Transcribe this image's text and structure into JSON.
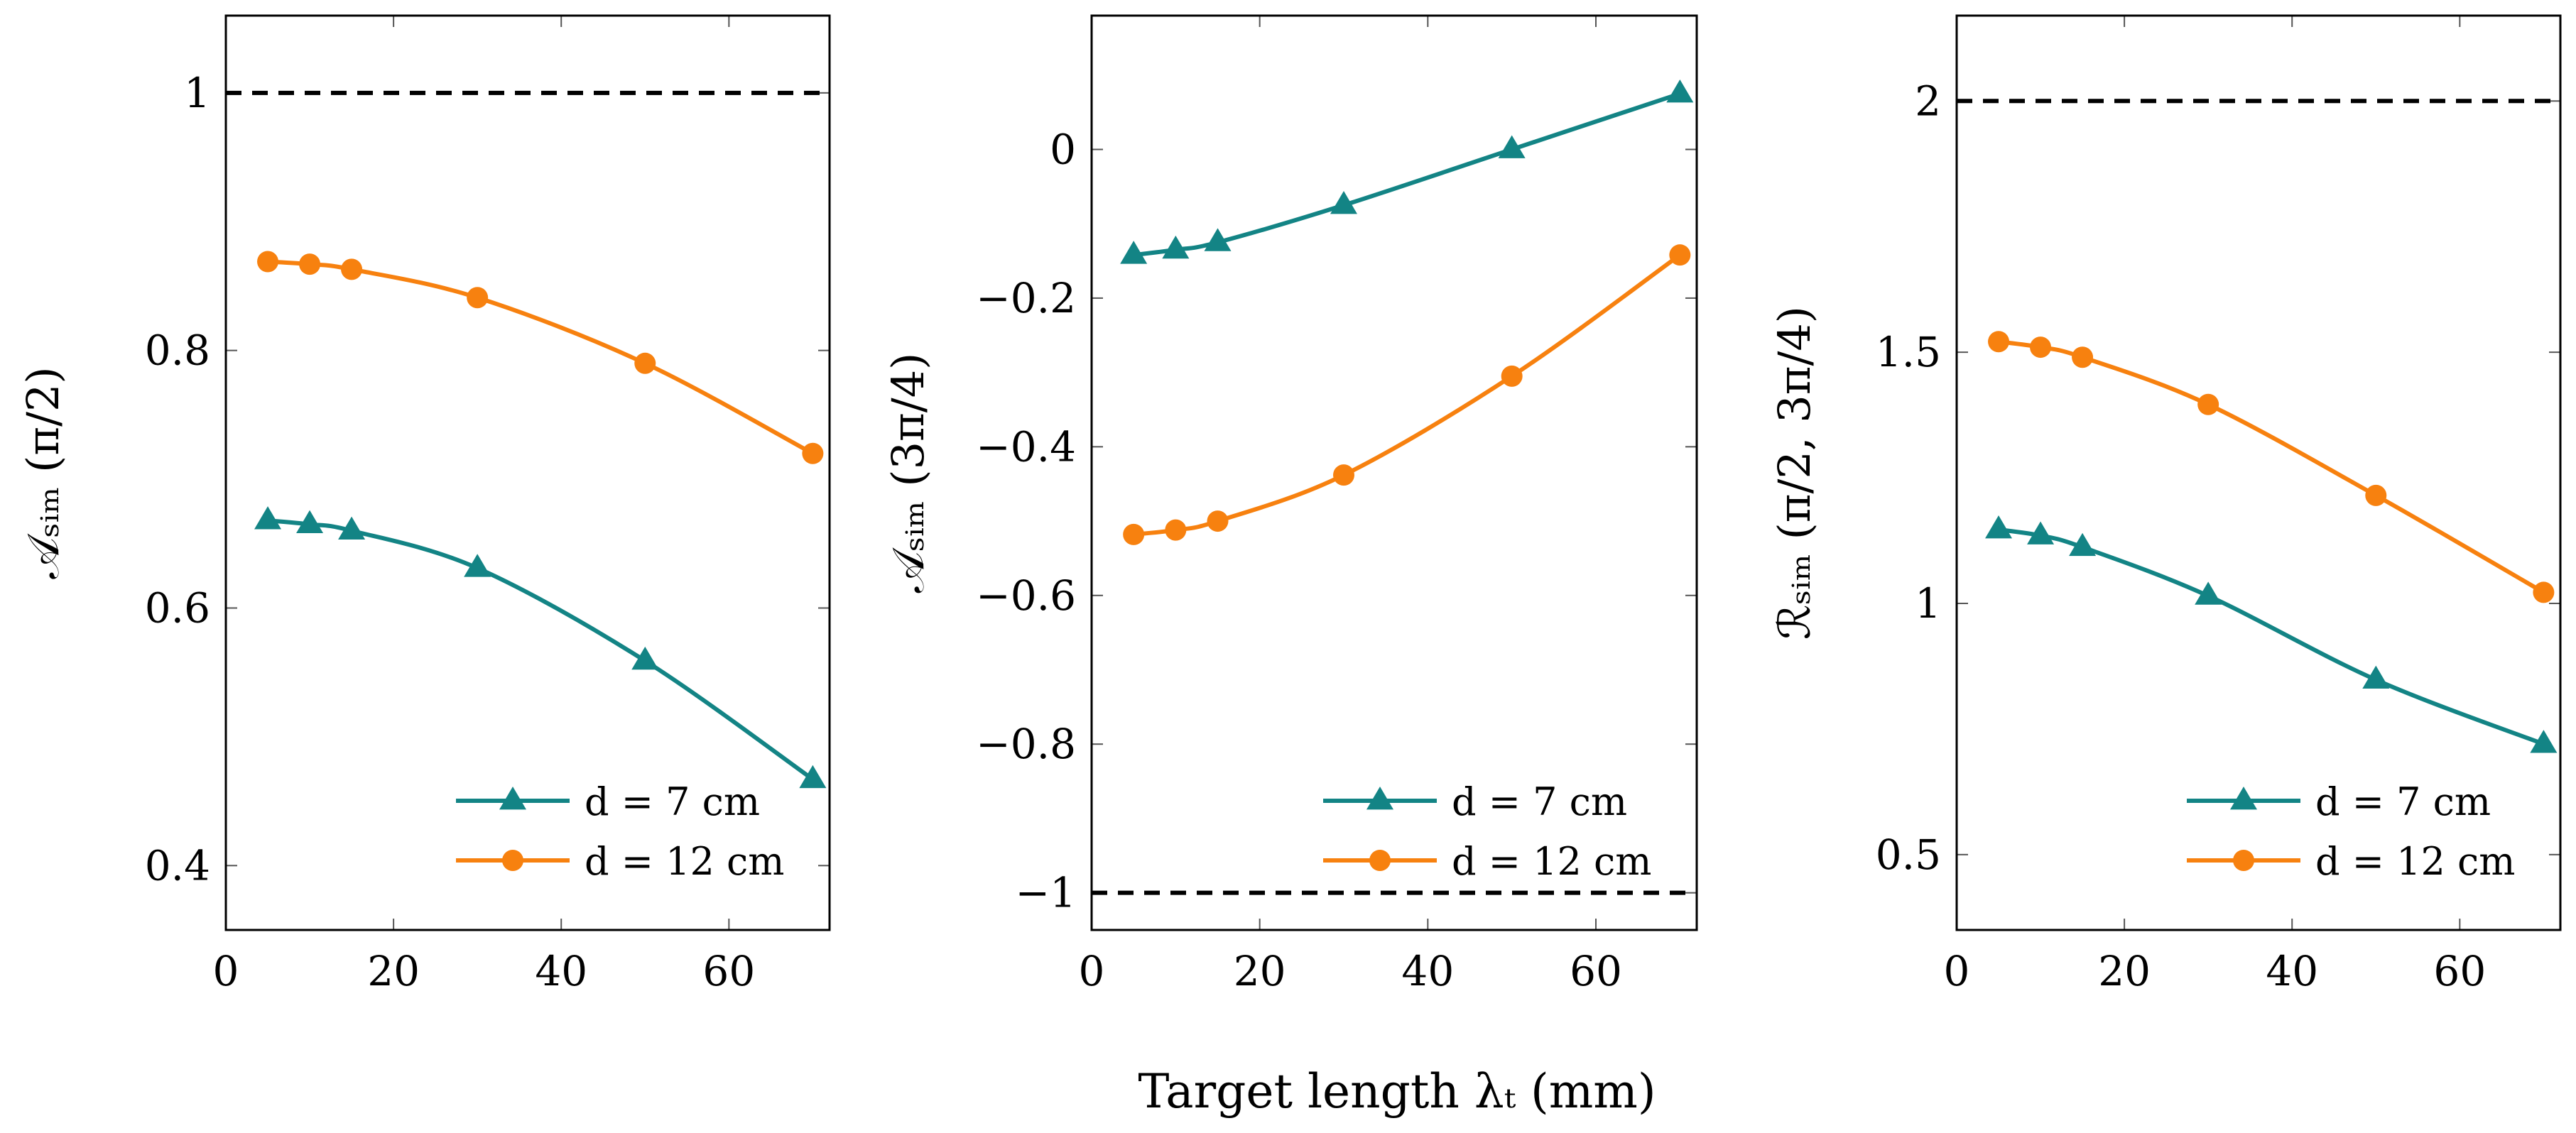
{
  "colors": {
    "teal": "#138485",
    "orange": "#f7810f",
    "reference": "#000000"
  },
  "xlabel": "Target length λₜ (mm)",
  "chart_data": [
    {
      "type": "line",
      "ylabel": "𝒜ₛᵢₘ (π/2)",
      "xlim": [
        0,
        72
      ],
      "ylim": [
        0.35,
        1.06
      ],
      "xticks": [
        0,
        20,
        40,
        60
      ],
      "yticks": [
        0.4,
        0.6,
        0.8,
        1
      ],
      "yticklabels": [
        "0.4",
        "0.6",
        "0.8",
        "1"
      ],
      "reference_line": 1,
      "legend": "bottom-right",
      "x": [
        5,
        10,
        15,
        30,
        50,
        70
      ],
      "series": [
        {
          "name": "d = 7 cm",
          "marker": "triangle",
          "color": "#138485",
          "values": [
            0.668,
            0.665,
            0.66,
            0.631,
            0.559,
            0.467
          ]
        },
        {
          "name": "d = 12 cm",
          "marker": "circle",
          "color": "#f7810f",
          "values": [
            0.869,
            0.867,
            0.863,
            0.841,
            0.79,
            0.72
          ]
        }
      ]
    },
    {
      "type": "line",
      "ylabel": "𝒜ₛᵢₘ (3π/4)",
      "xlim": [
        0,
        72
      ],
      "ylim": [
        -1.05,
        0.18
      ],
      "xticks": [
        0,
        20,
        40,
        60
      ],
      "yticks": [
        -1,
        -0.8,
        -0.6,
        -0.4,
        -0.2,
        0
      ],
      "yticklabels": [
        "−1",
        "−0.8",
        "−0.6",
        "−0.4",
        "−0.2",
        "0"
      ],
      "reference_line": -1,
      "legend": "bottom-right",
      "x": [
        5,
        10,
        15,
        30,
        50,
        70
      ],
      "series": [
        {
          "name": "d = 7 cm",
          "marker": "triangle",
          "color": "#138485",
          "values": [
            -0.142,
            -0.135,
            -0.125,
            -0.075,
            0.0,
            0.075
          ]
        },
        {
          "name": "d = 12 cm",
          "marker": "circle",
          "color": "#f7810f",
          "values": [
            -0.518,
            -0.512,
            -0.5,
            -0.438,
            -0.305,
            -0.142
          ]
        }
      ]
    },
    {
      "type": "line",
      "ylabel": "ℛₛᵢₘ (π/2, 3π/4)",
      "xlim": [
        0,
        72
      ],
      "ylim": [
        0.35,
        2.17
      ],
      "xticks": [
        0,
        20,
        40,
        60
      ],
      "yticks": [
        0.5,
        1,
        1.5,
        2
      ],
      "yticklabels": [
        "0.5",
        "1",
        "1.5",
        "2"
      ],
      "reference_line": 2,
      "legend": "bottom-right",
      "x": [
        5,
        10,
        15,
        30,
        50,
        70
      ],
      "series": [
        {
          "name": "d = 7 cm",
          "marker": "triangle",
          "color": "#138485",
          "values": [
            1.147,
            1.135,
            1.112,
            1.015,
            0.848,
            0.72
          ]
        },
        {
          "name": "d = 12 cm",
          "marker": "circle",
          "color": "#f7810f",
          "values": [
            1.521,
            1.51,
            1.49,
            1.396,
            1.215,
            1.022
          ]
        }
      ]
    }
  ]
}
